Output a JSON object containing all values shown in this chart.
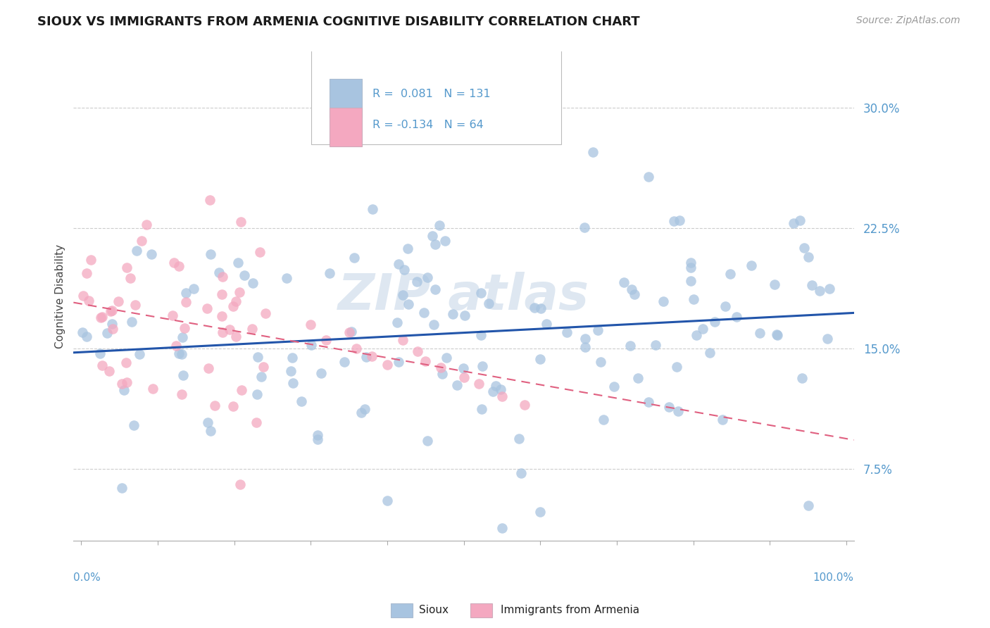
{
  "title": "SIOUX VS IMMIGRANTS FROM ARMENIA COGNITIVE DISABILITY CORRELATION CHART",
  "source": "Source: ZipAtlas.com",
  "ylabel": "Cognitive Disability",
  "yticks": [
    "7.5%",
    "15.0%",
    "22.5%",
    "30.0%"
  ],
  "ytick_vals": [
    0.075,
    0.15,
    0.225,
    0.3
  ],
  "xlim": [
    -0.01,
    1.01
  ],
  "ylim": [
    0.03,
    0.335
  ],
  "sioux_color": "#a8c4e0",
  "armenia_color": "#f4a8c0",
  "sioux_line_color": "#2255aa",
  "armenia_line_color": "#e06080",
  "sioux_R": 0.081,
  "sioux_N": 131,
  "armenia_R": -0.134,
  "armenia_N": 64,
  "tick_color": "#5599cc",
  "grid_color": "#cccccc",
  "watermark_color": "#c8d8e8"
}
